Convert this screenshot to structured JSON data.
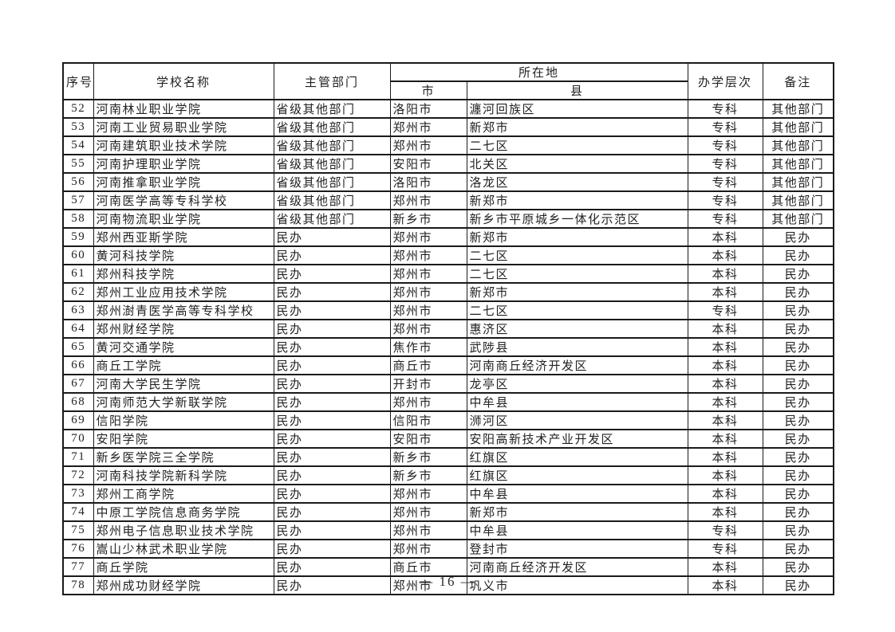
{
  "page": {
    "number_label": "— 16 —"
  },
  "table": {
    "headers": {
      "no": "序号",
      "school": "学校名称",
      "department": "主管部门",
      "location": "所在地",
      "city": "市",
      "county": "县",
      "level": "办学层次",
      "note": "备注"
    },
    "rows": [
      {
        "no": "52",
        "school": "河南林业职业学院",
        "department": "省级其他部门",
        "city": "洛阳市",
        "county": "瀍河回族区",
        "level": "专科",
        "note": "其他部门"
      },
      {
        "no": "53",
        "school": "河南工业贸易职业学院",
        "department": "省级其他部门",
        "city": "郑州市",
        "county": "新郑市",
        "level": "专科",
        "note": "其他部门"
      },
      {
        "no": "54",
        "school": "河南建筑职业技术学院",
        "department": "省级其他部门",
        "city": "郑州市",
        "county": "二七区",
        "level": "专科",
        "note": "其他部门"
      },
      {
        "no": "55",
        "school": "河南护理职业学院",
        "department": "省级其他部门",
        "city": "安阳市",
        "county": "北关区",
        "level": "专科",
        "note": "其他部门"
      },
      {
        "no": "56",
        "school": "河南推拿职业学院",
        "department": "省级其他部门",
        "city": "洛阳市",
        "county": "洛龙区",
        "level": "专科",
        "note": "其他部门"
      },
      {
        "no": "57",
        "school": "河南医学高等专科学校",
        "department": "省级其他部门",
        "city": "郑州市",
        "county": "新郑市",
        "level": "专科",
        "note": "其他部门"
      },
      {
        "no": "58",
        "school": "河南物流职业学院",
        "department": "省级其他部门",
        "city": "新乡市",
        "county": "新乡市平原城乡一体化示范区",
        "level": "专科",
        "note": "其他部门"
      },
      {
        "no": "59",
        "school": "郑州西亚斯学院",
        "department": "民办",
        "city": "郑州市",
        "county": "新郑市",
        "level": "本科",
        "note": "民办"
      },
      {
        "no": "60",
        "school": "黄河科技学院",
        "department": "民办",
        "city": "郑州市",
        "county": "二七区",
        "level": "本科",
        "note": "民办"
      },
      {
        "no": "61",
        "school": "郑州科技学院",
        "department": "民办",
        "city": "郑州市",
        "county": "二七区",
        "level": "本科",
        "note": "民办"
      },
      {
        "no": "62",
        "school": "郑州工业应用技术学院",
        "department": "民办",
        "city": "郑州市",
        "county": "新郑市",
        "level": "本科",
        "note": "民办"
      },
      {
        "no": "63",
        "school": "郑州澍青医学高等专科学校",
        "department": "民办",
        "city": "郑州市",
        "county": "二七区",
        "level": "专科",
        "note": "民办"
      },
      {
        "no": "64",
        "school": "郑州财经学院",
        "department": "民办",
        "city": "郑州市",
        "county": "惠济区",
        "level": "本科",
        "note": "民办"
      },
      {
        "no": "65",
        "school": "黄河交通学院",
        "department": "民办",
        "city": "焦作市",
        "county": "武陟县",
        "level": "本科",
        "note": "民办"
      },
      {
        "no": "66",
        "school": "商丘工学院",
        "department": "民办",
        "city": "商丘市",
        "county": "河南商丘经济开发区",
        "level": "本科",
        "note": "民办"
      },
      {
        "no": "67",
        "school": "河南大学民生学院",
        "department": "民办",
        "city": "开封市",
        "county": "龙亭区",
        "level": "本科",
        "note": "民办"
      },
      {
        "no": "68",
        "school": "河南师范大学新联学院",
        "department": "民办",
        "city": "郑州市",
        "county": "中牟县",
        "level": "本科",
        "note": "民办"
      },
      {
        "no": "69",
        "school": "信阳学院",
        "department": "民办",
        "city": "信阳市",
        "county": "浉河区",
        "level": "本科",
        "note": "民办"
      },
      {
        "no": "70",
        "school": "安阳学院",
        "department": "民办",
        "city": "安阳市",
        "county": "安阳高新技术产业开发区",
        "level": "本科",
        "note": "民办"
      },
      {
        "no": "71",
        "school": "新乡医学院三全学院",
        "department": "民办",
        "city": "新乡市",
        "county": "红旗区",
        "level": "本科",
        "note": "民办"
      },
      {
        "no": "72",
        "school": "河南科技学院新科学院",
        "department": "民办",
        "city": "新乡市",
        "county": "红旗区",
        "level": "本科",
        "note": "民办"
      },
      {
        "no": "73",
        "school": "郑州工商学院",
        "department": "民办",
        "city": "郑州市",
        "county": "中牟县",
        "level": "本科",
        "note": "民办"
      },
      {
        "no": "74",
        "school": "中原工学院信息商务学院",
        "department": "民办",
        "city": "郑州市",
        "county": "新郑市",
        "level": "本科",
        "note": "民办"
      },
      {
        "no": "75",
        "school": "郑州电子信息职业技术学院",
        "department": "民办",
        "city": "郑州市",
        "county": "中牟县",
        "level": "专科",
        "note": "民办"
      },
      {
        "no": "76",
        "school": "嵩山少林武术职业学院",
        "department": "民办",
        "city": "郑州市",
        "county": "登封市",
        "level": "专科",
        "note": "民办"
      },
      {
        "no": "77",
        "school": "商丘学院",
        "department": "民办",
        "city": "商丘市",
        "county": "河南商丘经济开发区",
        "level": "本科",
        "note": "民办"
      },
      {
        "no": "78",
        "school": "郑州成功财经学院",
        "department": "民办",
        "city": "郑州市",
        "county": "巩义市",
        "level": "本科",
        "note": "民办"
      }
    ]
  }
}
